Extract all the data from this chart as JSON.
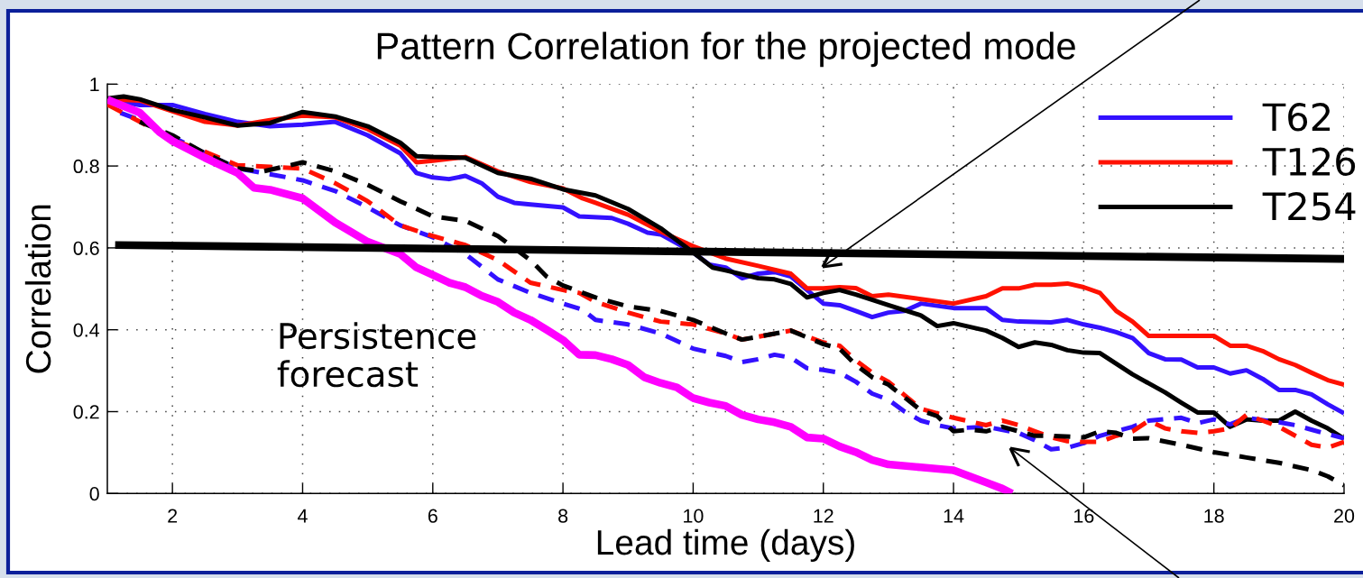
{
  "chart_data": {
    "type": "line",
    "title": "Pattern Correlation for the projected mode",
    "xlabel": "Lead time (days)",
    "ylabel": "Correlation",
    "xlim": [
      1,
      20
    ],
    "ylim": [
      0,
      1
    ],
    "xticks": [
      2,
      4,
      6,
      8,
      10,
      12,
      14,
      16,
      18,
      20
    ],
    "yticks": [
      0,
      0.2,
      0.4,
      0.6,
      0.8,
      1
    ],
    "grid": true,
    "legend": "top right",
    "annotations": [
      "Persistence\nforecast"
    ],
    "series": [
      {
        "name": "T62",
        "color": "#3311ff",
        "line_style": "solid",
        "x": [
          1,
          1.5,
          2,
          2.5,
          3,
          3.5,
          4,
          4.5,
          5,
          5.5,
          5.75,
          6,
          6.25,
          6.5,
          6.75,
          7,
          7.25,
          7.5,
          8,
          8.25,
          8.75,
          9,
          9.3,
          9.5,
          9.75,
          10,
          10.25,
          10.5,
          10.75,
          11,
          11.25,
          11.5,
          11.75,
          12,
          12.25,
          12.5,
          12.75,
          13,
          13.25,
          13.5,
          14,
          14.5,
          14.75,
          15,
          15.5,
          15.75,
          16,
          16.25,
          16.5,
          16.75,
          17,
          17.25,
          17.5,
          17.75,
          18,
          18.25,
          18.5,
          18.75,
          19,
          19.25,
          19.5,
          19.75,
          20
        ],
        "values": [
          0.963,
          0.949,
          0.949,
          0.927,
          0.908,
          0.897,
          0.901,
          0.908,
          0.875,
          0.831,
          0.783,
          0.772,
          0.768,
          0.776,
          0.758,
          0.725,
          0.71,
          0.706,
          0.699,
          0.677,
          0.673,
          0.659,
          0.637,
          0.633,
          0.611,
          0.589,
          0.559,
          0.552,
          0.526,
          0.537,
          0.541,
          0.53,
          0.497,
          0.464,
          0.46,
          0.446,
          0.431,
          0.442,
          0.446,
          0.464,
          0.453,
          0.453,
          0.424,
          0.42,
          0.418,
          0.424,
          0.413,
          0.405,
          0.394,
          0.38,
          0.343,
          0.328,
          0.327,
          0.308,
          0.308,
          0.293,
          0.301,
          0.28,
          0.253,
          0.253,
          0.242,
          0.218,
          0.196
        ]
      },
      {
        "name": "T126",
        "color": "#ff1100",
        "line_style": "solid",
        "x": [
          1,
          1.5,
          2,
          2.5,
          3,
          3.5,
          4,
          4.5,
          5,
          5.5,
          5.75,
          6,
          6.5,
          7,
          7.5,
          8,
          8.3,
          8.5,
          9,
          9.5,
          10,
          10.5,
          11,
          11.5,
          11.75,
          12,
          12.25,
          12.5,
          12.75,
          13,
          13.5,
          14,
          14.5,
          14.75,
          15,
          15.25,
          15.5,
          15.75,
          16,
          16.25,
          16.5,
          16.75,
          17,
          17.5,
          18,
          18.25,
          18.5,
          18.75,
          19,
          19.25,
          19.5,
          19.75,
          20
        ],
        "values": [
          0.963,
          0.96,
          0.934,
          0.908,
          0.899,
          0.912,
          0.923,
          0.919,
          0.89,
          0.85,
          0.809,
          0.813,
          0.822,
          0.787,
          0.761,
          0.745,
          0.721,
          0.71,
          0.681,
          0.64,
          0.604,
          0.574,
          0.556,
          0.537,
          0.501,
          0.501,
          0.504,
          0.502,
          0.482,
          0.486,
          0.475,
          0.464,
          0.482,
          0.501,
          0.501,
          0.51,
          0.51,
          0.513,
          0.504,
          0.49,
          0.446,
          0.42,
          0.385,
          0.385,
          0.385,
          0.361,
          0.361,
          0.348,
          0.328,
          0.314,
          0.295,
          0.277,
          0.266
        ]
      },
      {
        "name": "T254",
        "color": "#000000",
        "line_style": "solid",
        "x": [
          1,
          1.25,
          1.5,
          2,
          2.5,
          3,
          3.5,
          4,
          4.5,
          5,
          5.5,
          5.75,
          6,
          6.5,
          7,
          7.5,
          8,
          8.5,
          9,
          9.5,
          10,
          10.3,
          10.5,
          11,
          11.25,
          11.5,
          11.75,
          12,
          12.25,
          12.5,
          13,
          13.5,
          13.75,
          14,
          14.5,
          14.75,
          15,
          15.25,
          15.5,
          15.75,
          16,
          16.25,
          16.5,
          16.75,
          17,
          17.25,
          17.5,
          17.75,
          18,
          18.25,
          18.5,
          18.75,
          19,
          19.25,
          19.5,
          19.75,
          20
        ],
        "values": [
          0.965,
          0.97,
          0.963,
          0.937,
          0.919,
          0.899,
          0.905,
          0.932,
          0.921,
          0.897,
          0.857,
          0.824,
          0.822,
          0.82,
          0.783,
          0.769,
          0.743,
          0.728,
          0.695,
          0.648,
          0.589,
          0.552,
          0.545,
          0.526,
          0.523,
          0.512,
          0.479,
          0.49,
          0.497,
          0.486,
          0.46,
          0.435,
          0.409,
          0.416,
          0.398,
          0.38,
          0.358,
          0.369,
          0.363,
          0.35,
          0.344,
          0.343,
          0.317,
          0.291,
          0.269,
          0.247,
          0.222,
          0.198,
          0.198,
          0.163,
          0.181,
          0.178,
          0.178,
          0.2,
          0.178,
          0.159,
          0.134
        ]
      },
      {
        "color": "#3311ff",
        "line_style": "dashed",
        "x": [
          1.2,
          1.5,
          2,
          2.5,
          3,
          3.5,
          4,
          4.5,
          5,
          5.5,
          6,
          6.5,
          7,
          7.5,
          8,
          8.3,
          8.5,
          9,
          9.5,
          10,
          10.5,
          10.75,
          11,
          11.25,
          11.5,
          11.75,
          12,
          12.25,
          12.5,
          12.75,
          13,
          13.25,
          13.5,
          13.75,
          14,
          14.5,
          15,
          15.25,
          15.5,
          15.75,
          16,
          16.25,
          16.5,
          16.75,
          17,
          17.5,
          17.75,
          18,
          18.25,
          18.5,
          19,
          19.25,
          19.5,
          19.75,
          20
        ],
        "values": [
          0.93,
          0.912,
          0.871,
          0.831,
          0.794,
          0.78,
          0.765,
          0.739,
          0.699,
          0.655,
          0.626,
          0.585,
          0.523,
          0.49,
          0.464,
          0.449,
          0.424,
          0.413,
          0.391,
          0.354,
          0.336,
          0.321,
          0.328,
          0.339,
          0.332,
          0.306,
          0.302,
          0.295,
          0.273,
          0.244,
          0.229,
          0.2,
          0.178,
          0.167,
          0.159,
          0.163,
          0.148,
          0.13,
          0.108,
          0.112,
          0.123,
          0.141,
          0.152,
          0.163,
          0.178,
          0.185,
          0.172,
          0.181,
          0.169,
          0.185,
          0.174,
          0.167,
          0.156,
          0.145,
          0.135
        ]
      },
      {
        "color": "#ff1100",
        "line_style": "dashed",
        "x": [
          1,
          1.5,
          2,
          2.5,
          3,
          3.5,
          4,
          4.5,
          5,
          5.5,
          6,
          6.5,
          7,
          7.5,
          8,
          8.25,
          8.5,
          9,
          9.5,
          10,
          10.5,
          10.75,
          11,
          11.5,
          12,
          12.25,
          12.5,
          12.75,
          13,
          13.25,
          13.5,
          13.75,
          14,
          14.5,
          14.75,
          15,
          15.25,
          15.5,
          15.75,
          16,
          16.25,
          16.5,
          16.75,
          17,
          17.25,
          17.5,
          17.75,
          18,
          18.25,
          18.5,
          18.75,
          19,
          19.25,
          19.5,
          19.75,
          20
        ],
        "values": [
          0.95,
          0.908,
          0.864,
          0.835,
          0.802,
          0.798,
          0.794,
          0.758,
          0.714,
          0.655,
          0.629,
          0.607,
          0.57,
          0.515,
          0.497,
          0.49,
          0.468,
          0.442,
          0.42,
          0.413,
          0.391,
          0.376,
          0.383,
          0.398,
          0.369,
          0.361,
          0.325,
          0.295,
          0.273,
          0.24,
          0.207,
          0.196,
          0.185,
          0.167,
          0.178,
          0.167,
          0.152,
          0.137,
          0.128,
          0.126,
          0.126,
          0.141,
          0.152,
          0.178,
          0.159,
          0.152,
          0.148,
          0.152,
          0.159,
          0.192,
          0.178,
          0.163,
          0.141,
          0.119,
          0.112,
          0.126
        ]
      },
      {
        "color": "#000000",
        "line_style": "dashed",
        "x": [
          1.5,
          2,
          2.5,
          3,
          3.4,
          4,
          4.5,
          5,
          5.5,
          6,
          6.5,
          7,
          7.5,
          7.75,
          8,
          8.5,
          9,
          9.5,
          10,
          10.5,
          10.75,
          11,
          11.5,
          12,
          12.25,
          12.5,
          12.75,
          13,
          13.5,
          13.75,
          14,
          14.25,
          14.5,
          14.75,
          15,
          15.25,
          15.5,
          16,
          16.25,
          16.5,
          16.75,
          17,
          17.5,
          18,
          18.5,
          19,
          19.5,
          19.75,
          20
        ],
        "values": [
          0.908,
          0.875,
          0.831,
          0.794,
          0.787,
          0.809,
          0.787,
          0.754,
          0.714,
          0.677,
          0.666,
          0.629,
          0.57,
          0.53,
          0.508,
          0.479,
          0.457,
          0.446,
          0.424,
          0.391,
          0.376,
          0.383,
          0.398,
          0.365,
          0.354,
          0.314,
          0.284,
          0.266,
          0.203,
          0.189,
          0.152,
          0.156,
          0.152,
          0.163,
          0.152,
          0.141,
          0.141,
          0.137,
          0.152,
          0.148,
          0.134,
          0.135,
          0.119,
          0.101,
          0.088,
          0.075,
          0.057,
          0.042,
          0.02
        ]
      },
      {
        "color": "#ff00ff",
        "line_style": "solid",
        "x": [
          1,
          1.5,
          1.8,
          2,
          2.5,
          3,
          3.25,
          3.5,
          4,
          4.5,
          5,
          5.5,
          5.75,
          6,
          6.25,
          6.5,
          6.75,
          7,
          7.25,
          7.5,
          7.75,
          8,
          8.25,
          8.5,
          8.75,
          9,
          9.25,
          9.5,
          9.75,
          10,
          10.25,
          10.5,
          10.75,
          11,
          11.25,
          11.5,
          11.75,
          12,
          12.25,
          12.5,
          12.75,
          13,
          13.5,
          14,
          14.25,
          14.5,
          14.75,
          14.9
        ],
        "values": [
          0.962,
          0.93,
          0.883,
          0.861,
          0.82,
          0.783,
          0.747,
          0.742,
          0.721,
          0.662,
          0.615,
          0.585,
          0.552,
          0.534,
          0.515,
          0.504,
          0.483,
          0.468,
          0.442,
          0.424,
          0.4,
          0.375,
          0.339,
          0.338,
          0.328,
          0.314,
          0.284,
          0.27,
          0.259,
          0.233,
          0.222,
          0.214,
          0.192,
          0.181,
          0.174,
          0.163,
          0.137,
          0.134,
          0.115,
          0.101,
          0.082,
          0.071,
          0.064,
          0.057,
          0.042,
          0.027,
          0.012,
          0
        ]
      },
      {
        "color": "#000000",
        "line_style": "solid",
        "x": [
          1.12,
          20
        ],
        "values": [
          0.607,
          0.573
        ]
      }
    ]
  }
}
